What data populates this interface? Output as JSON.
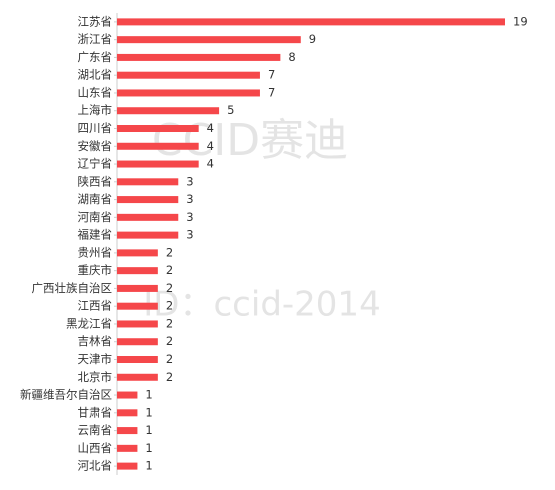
{
  "chart_data": {
    "type": "bar",
    "orientation": "horizontal",
    "categories": [
      "江苏省",
      "浙江省",
      "广东省",
      "湖北省",
      "山东省",
      "上海市",
      "四川省",
      "安徽省",
      "辽宁省",
      "陕西省",
      "湖南省",
      "河南省",
      "福建省",
      "贵州省",
      "重庆市",
      "广西壮族自治区",
      "江西省",
      "黑龙江省",
      "吉林省",
      "天津市",
      "北京市",
      "新疆维吾尔自治区",
      "甘肃省",
      "云南省",
      "山西省",
      "河北省"
    ],
    "values": [
      19,
      9,
      8,
      7,
      7,
      5,
      4,
      4,
      4,
      3,
      3,
      3,
      3,
      2,
      2,
      2,
      2,
      2,
      2,
      2,
      2,
      1,
      1,
      1,
      1,
      1
    ],
    "color": "#f5474a",
    "watermark": [
      "CCID赛迪",
      "ID：ccid-2014"
    ]
  }
}
